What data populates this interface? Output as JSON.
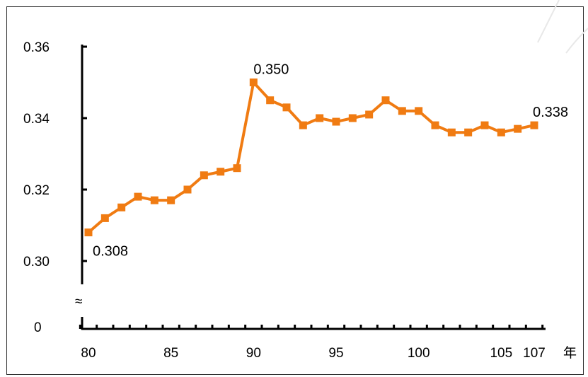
{
  "chart_data": {
    "type": "line",
    "x": [
      80,
      81,
      82,
      83,
      84,
      85,
      86,
      87,
      88,
      89,
      90,
      91,
      92,
      93,
      94,
      95,
      96,
      97,
      98,
      99,
      100,
      101,
      102,
      103,
      104,
      105,
      106,
      107
    ],
    "series": [
      {
        "values": [
          0.308,
          0.312,
          0.315,
          0.318,
          0.317,
          0.317,
          0.32,
          0.324,
          0.325,
          0.326,
          0.35,
          0.345,
          0.343,
          0.338,
          0.34,
          0.339,
          0.34,
          0.341,
          0.345,
          0.342,
          0.342,
          0.338,
          0.336,
          0.336,
          0.338,
          0.336,
          0.337,
          0.338
        ],
        "color": "#f07b12",
        "marker": "square"
      }
    ],
    "xlabel": "年",
    "ylabel": "",
    "ylim": [
      0.3,
      0.36
    ],
    "yaxis_break": true,
    "y_break_symbol": "≈",
    "y_zero_label": "0",
    "yticks": [
      0.3,
      0.32,
      0.34,
      0.36
    ],
    "ytick_labels": [
      "0.30",
      "0.32",
      "0.34",
      "0.36"
    ],
    "xtick_labels": [
      {
        "x": 80,
        "label": "80"
      },
      {
        "x": 85,
        "label": "85"
      },
      {
        "x": 90,
        "label": "90"
      },
      {
        "x": 95,
        "label": "95"
      },
      {
        "x": 100,
        "label": "100"
      },
      {
        "x": 105,
        "label": "105"
      },
      {
        "x": 107,
        "label": "107"
      }
    ],
    "annotations": [
      {
        "x": 80,
        "label": "0.308"
      },
      {
        "x": 90,
        "label": "0.350"
      },
      {
        "x": 107,
        "label": "0.338"
      }
    ],
    "grid": false,
    "legend": "none"
  }
}
